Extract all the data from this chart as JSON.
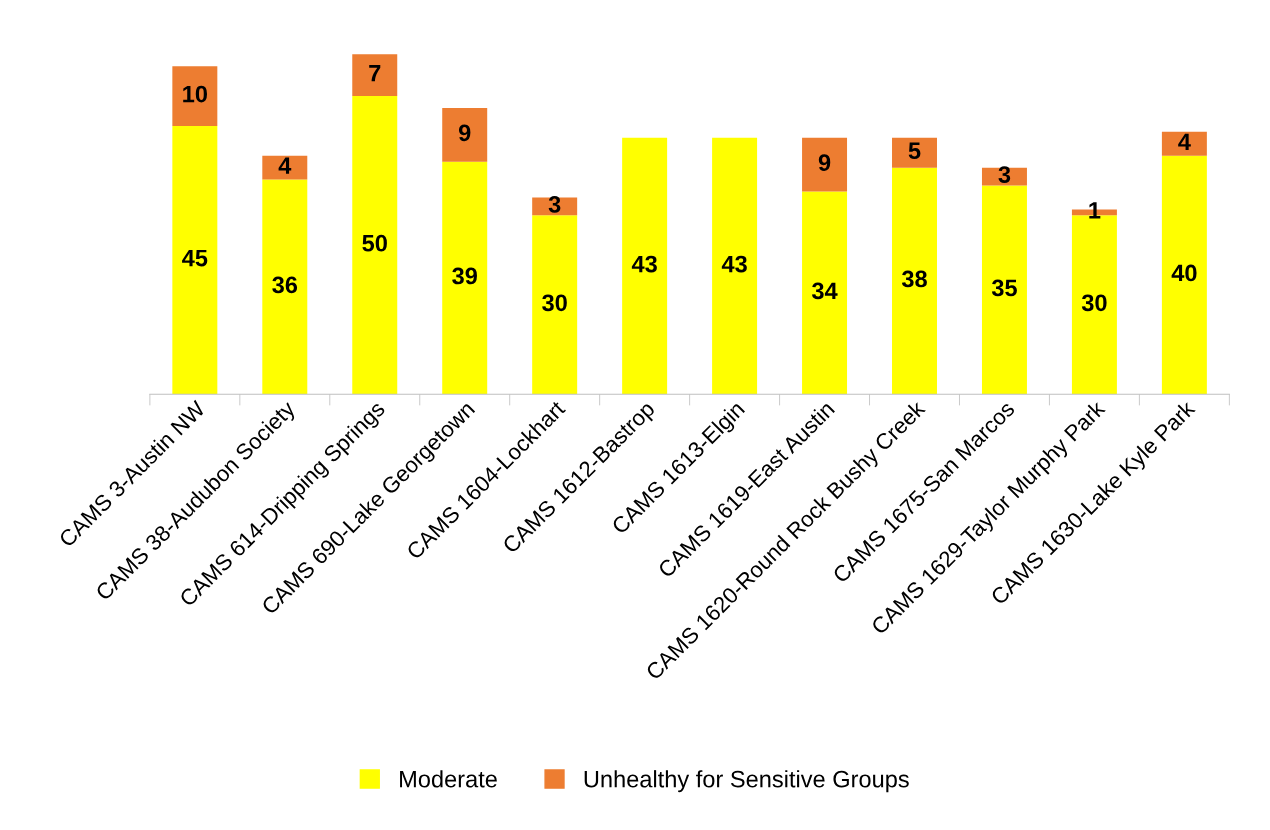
{
  "chart_data": {
    "type": "bar",
    "stacked": true,
    "data_labels": true,
    "legend": "bottom",
    "grid": false,
    "categories": [
      "CAMS 3-Austin NW",
      "CAMS 38-Audubon Society",
      "CAMS 614-Dripping Springs",
      "CAMS 690-Lake Georgetown",
      "CAMS 1604-Lockhart",
      "CAMS 1612-Bastrop",
      "CAMS 1613-Elgin",
      "CAMS 1619-East Austin",
      "CAMS 1620-Round Rock Bushy Creek",
      "CAMS 1675-San Marcos",
      "CAMS 1629-Taylor Murphy Park",
      "CAMS 1630-Lake Kyle Park"
    ],
    "series": [
      {
        "name": "Moderate",
        "color": "#ffff00",
        "values": [
          45,
          36,
          50,
          39,
          30,
          43,
          43,
          34,
          38,
          35,
          30,
          40
        ]
      },
      {
        "name": "Unhealthy for Sensitive Groups",
        "color": "#ed7d31",
        "values": [
          10,
          4,
          7,
          9,
          3,
          null,
          null,
          9,
          5,
          3,
          1,
          4
        ]
      }
    ]
  }
}
